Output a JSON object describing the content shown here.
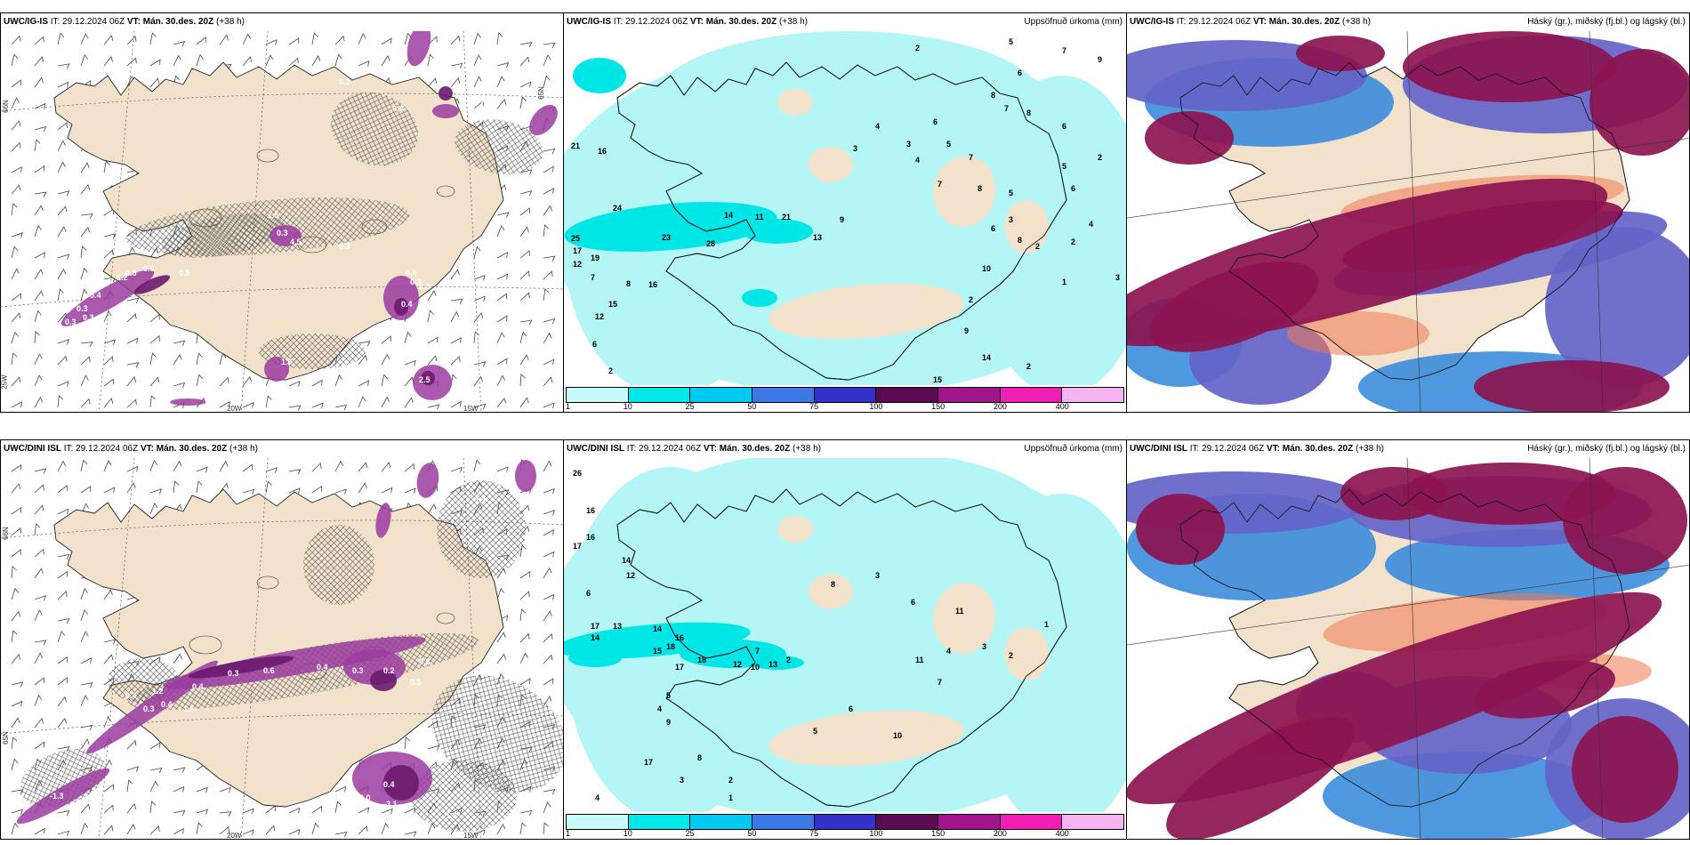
{
  "panels": [
    {
      "id": "tl",
      "model": "UWC/IG-IS",
      "it_label": "IT:",
      "it": "29.12.2024 06Z",
      "vt_label": "VT:",
      "vt": "Mán. 30.des. 20Z",
      "lead": "(+38 h)",
      "right_title": "",
      "grid_labels": [
        "66N",
        "20W",
        "15W",
        "65N",
        "25W"
      ],
      "values": [
        "0.3",
        "0.4",
        "0.8",
        "0.5",
        "0.3",
        "0.3",
        "2.2",
        "0.6",
        "0.3",
        "0.4",
        "0.7",
        "0.3",
        "1.5",
        "4.5",
        "0.3",
        "0.4",
        "0.3",
        "0.6",
        "0.3",
        "1.0",
        "2.5"
      ]
    },
    {
      "id": "tm",
      "model": "UWC/IG-IS",
      "it_label": "IT:",
      "it": "29.12.2024 06Z",
      "vt_label": "VT:",
      "vt": "Mán. 30.des. 20Z",
      "lead": "(+38 h)",
      "right_title": "Uppsöfnuð úrkoma (mm)",
      "values": [
        "2",
        "5",
        "6",
        "7",
        "8",
        "8",
        "9",
        "7",
        "6",
        "21",
        "16",
        "24",
        "25",
        "17",
        "19",
        "12",
        "7",
        "8",
        "16",
        "15",
        "12",
        "6",
        "2",
        "23",
        "28",
        "14",
        "11",
        "21",
        "13",
        "9",
        "4",
        "3",
        "6",
        "5",
        "7",
        "8",
        "3",
        "4",
        "7",
        "6",
        "5",
        "8",
        "10",
        "2",
        "15",
        "3",
        "2",
        "1",
        "2",
        "9",
        "14",
        "2",
        "1",
        "2",
        "3",
        "6",
        "5",
        "4"
      ]
    },
    {
      "id": "tr",
      "model": "UWC/IG-IS",
      "it_label": "IT:",
      "it": "29.12.2024 06Z",
      "vt_label": "VT:",
      "vt": "Mán. 30.des. 20Z",
      "lead": "(+38 h)",
      "right_title": "Háský (gr.), miðský (fj.bl.) og lágský (bl.)"
    },
    {
      "id": "bl",
      "model": "UWC/DINI ISL",
      "it_label": "IT:",
      "it": "29.12.2024 06Z",
      "vt_label": "VT:",
      "vt": "Mán. 30.des. 20Z",
      "lead": "(+38 h)",
      "right_title": "",
      "grid_labels": [
        "66N",
        "20W",
        "15W",
        "65N"
      ],
      "values": [
        "-1.1",
        "1.2",
        "0.4",
        "-1.3",
        "0.4",
        "0.3",
        "0.6",
        "0.4",
        "0.3",
        "0.2",
        "0.3",
        "0.5",
        "0.4",
        "2.2",
        "1.6",
        "-2.0",
        "-3.1",
        "-1.3",
        "1.8",
        "0.4",
        "0.3",
        "0.2"
      ]
    },
    {
      "id": "bm",
      "model": "UWC/DINI ISL",
      "it_label": "IT:",
      "it": "29.12.2024 06Z",
      "vt_label": "VT:",
      "vt": "Mán. 30.des. 20Z",
      "lead": "(+38 h)",
      "right_title": "Uppsöfnuð úrkoma (mm)",
      "values": [
        "26",
        "16",
        "16",
        "17",
        "14",
        "12",
        "6",
        "17",
        "14",
        "13",
        "14",
        "16",
        "15",
        "18",
        "17",
        "18",
        "12",
        "10",
        "13",
        "7",
        "2",
        "5",
        "4",
        "9",
        "8",
        "17",
        "3",
        "2",
        "1",
        "4",
        "5",
        "6",
        "10",
        "11",
        "4",
        "7",
        "3",
        "8",
        "6",
        "11",
        "3",
        "2",
        "1"
      ]
    },
    {
      "id": "br",
      "model": "UWC/DINI ISL",
      "it_label": "IT:",
      "it": "29.12.2024 06Z",
      "vt_label": "VT:",
      "vt": "Mán. 30.des. 20Z",
      "lead": "(+38 h)",
      "right_title": "Háský (gr.), miðský (fj.bl.) og lágský (bl.)"
    }
  ],
  "colorbar": {
    "labels": [
      "1",
      "10",
      "25",
      "50",
      "75",
      "100",
      "150",
      "200",
      "400"
    ],
    "colors": [
      "#c8fafa",
      "#00e8e8",
      "#00c8f0",
      "#3c78e6",
      "#3232c8",
      "#5a0a50",
      "#a0148c",
      "#f01eb4",
      "#f5b4f0"
    ]
  },
  "colors": {
    "land": "#f2e2cc",
    "precip_light": "#b4f5f5",
    "precip_mid": "#00e6e6",
    "cloud_high": "#8c1450",
    "cloud_mid": "#6464c8",
    "cloud_low": "#3c8cdc",
    "ice_shading": "#9b3ca0"
  }
}
